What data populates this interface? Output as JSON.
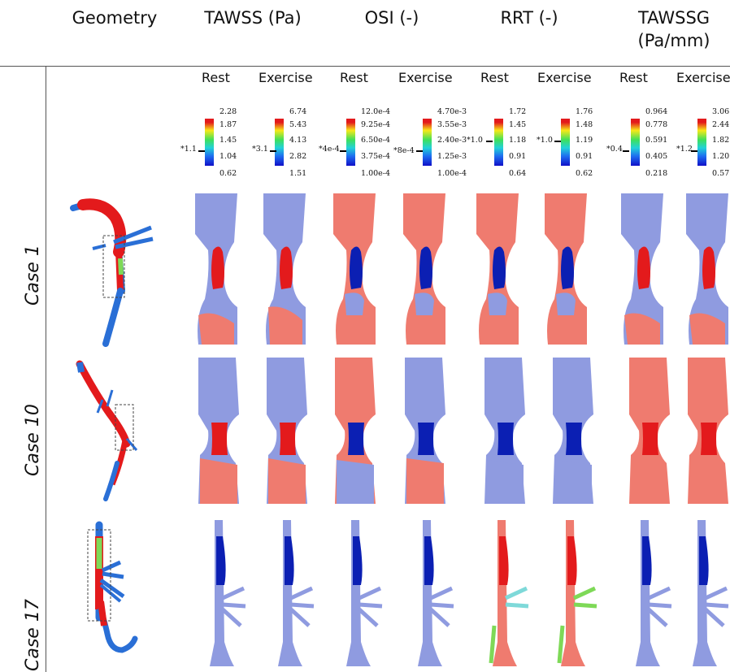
{
  "headers": [
    "Geometry",
    "TAWSS (Pa)",
    "OSI (-)",
    "RRT (-)",
    "TAWSSG (Pa/mm)"
  ],
  "subheaders": [
    "Rest",
    "Exercise",
    "Rest",
    "Exercise",
    "Rest",
    "Exercise",
    "Rest",
    "Exercise"
  ],
  "colorbars": [
    {
      "ticks": [
        "2.28",
        "1.87",
        "1.45",
        "1.04",
        "0.62"
      ],
      "marker": "*1.1"
    },
    {
      "ticks": [
        "6.74",
        "5.43",
        "4.13",
        "2.82",
        "1.51"
      ],
      "marker": "*3.1"
    },
    {
      "ticks": [
        "12.0e-4",
        "9.25e-4",
        "6.50e-4",
        "3.75e-4",
        "1.00e-4"
      ],
      "marker": "*4e-4"
    },
    {
      "ticks": [
        "4.70e-3",
        "3.55e-3",
        "2.40e-3",
        "1.25e-3",
        "1.00e-4"
      ],
      "marker": "*8e-4"
    },
    {
      "ticks": [
        "1.72",
        "1.45",
        "1.18",
        "0.91",
        "0.64"
      ],
      "marker": "*1.0"
    },
    {
      "ticks": [
        "1.76",
        "1.48",
        "1.19",
        "0.91",
        "0.62"
      ],
      "marker": "*1.0"
    },
    {
      "ticks": [
        "0.964",
        "0.778",
        "0.591",
        "0.405",
        "0.218"
      ],
      "marker": "*0.4"
    },
    {
      "ticks": [
        "3.06",
        "2.44",
        "1.82",
        "1.20",
        "0.57"
      ],
      "marker": "*1.2"
    }
  ],
  "rows": [
    "Case 1",
    "Case 10",
    "Case 17"
  ],
  "colors": {
    "red": "#e31a1c",
    "blue": "#2a6fd6",
    "green": "#7ed957",
    "lavender": "#8f9be0",
    "salmon": "#ef7b6f",
    "darkblue": "#0b1fb3"
  }
}
